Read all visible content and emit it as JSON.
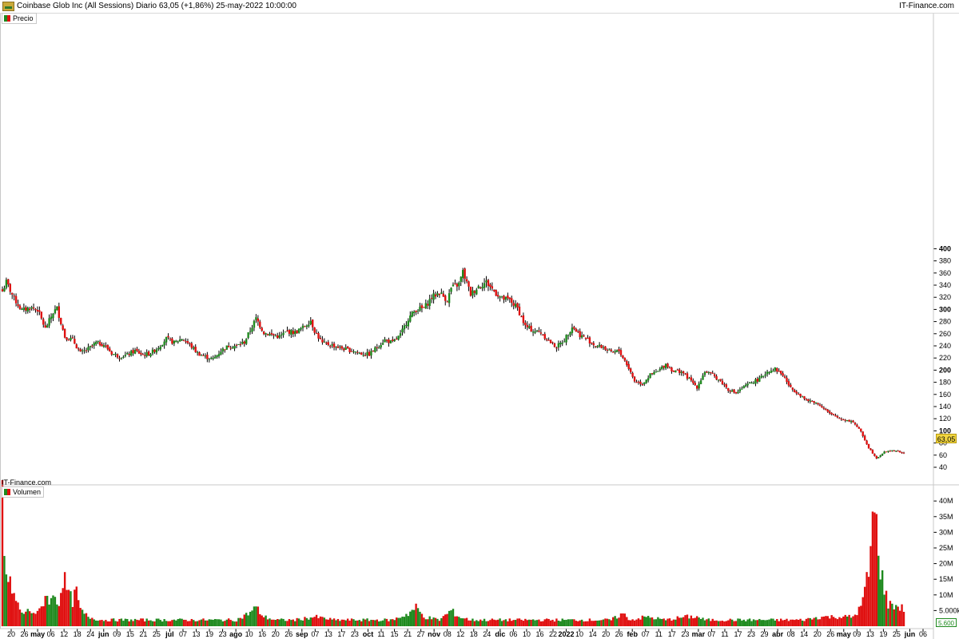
{
  "header": {
    "title": "Coinbase Glob Inc (All Sessions) Diario 63,05 (+1,86%) 25-may-2022 10:00:00",
    "brand": "IT-Finance.com"
  },
  "watermark": "IT-Finance.com",
  "price_pane": {
    "label": "Precio",
    "last_value_label": "63,05"
  },
  "volume_pane": {
    "label": "Volumen",
    "last_value_label": "5.600"
  },
  "colors": {
    "up": "#1e8a1e",
    "down": "#e01010",
    "badge": "#f2d640",
    "grid": "#e6e6e6"
  },
  "chart_data": [
    {
      "type": "candlestick",
      "title": "Precio",
      "ylim": [
        30,
        410
      ],
      "y_ticks": [
        "40",
        "60",
        "80",
        "100",
        "120",
        "140",
        "160",
        "180",
        "200",
        "220",
        "240",
        "260",
        "280",
        "300",
        "320",
        "340",
        "360",
        "380",
        "400"
      ],
      "bold_ticks": [
        "100",
        "200",
        "300",
        "400"
      ],
      "x_tick_labels": [
        "20",
        "26",
        "may",
        "06",
        "12",
        "18",
        "24",
        "jun",
        "09",
        "15",
        "21",
        "25",
        "jul",
        "07",
        "13",
        "19",
        "23",
        "ago",
        "10",
        "16",
        "20",
        "26",
        "sep",
        "07",
        "13",
        "17",
        "23",
        "oct",
        "11",
        "15",
        "21",
        "27",
        "nov",
        "08",
        "12",
        "18",
        "24",
        "dic",
        "06",
        "10",
        "16",
        "22",
        "2022",
        "10",
        "14",
        "20",
        "26",
        "feb",
        "07",
        "11",
        "17",
        "23",
        "mar",
        "07",
        "11",
        "17",
        "23",
        "29",
        "abr",
        "08",
        "14",
        "20",
        "26",
        "may",
        "09",
        "13",
        "19",
        "25",
        "jun",
        "06"
      ],
      "bold_x_labels": [
        "may",
        "jun",
        "jul",
        "ago",
        "sep",
        "oct",
        "nov",
        "dic",
        "2022",
        "feb",
        "mar",
        "abr"
      ],
      "anchors": [
        [
          0,
          330
        ],
        [
          2,
          345
        ],
        [
          6,
          318
        ],
        [
          10,
          298
        ],
        [
          14,
          303
        ],
        [
          18,
          300
        ],
        [
          22,
          268
        ],
        [
          26,
          295
        ],
        [
          28,
          302
        ],
        [
          32,
          255
        ],
        [
          36,
          250
        ],
        [
          40,
          228
        ],
        [
          44,
          235
        ],
        [
          48,
          245
        ],
        [
          52,
          242
        ],
        [
          56,
          228
        ],
        [
          60,
          222
        ],
        [
          64,
          225
        ],
        [
          68,
          232
        ],
        [
          72,
          225
        ],
        [
          76,
          228
        ],
        [
          80,
          238
        ],
        [
          84,
          252
        ],
        [
          88,
          245
        ],
        [
          92,
          252
        ],
        [
          96,
          242
        ],
        [
          100,
          228
        ],
        [
          104,
          222
        ],
        [
          108,
          218
        ],
        [
          112,
          232
        ],
        [
          116,
          240
        ],
        [
          120,
          240
        ],
        [
          124,
          246
        ],
        [
          128,
          272
        ],
        [
          130,
          285
        ],
        [
          134,
          262
        ],
        [
          138,
          258
        ],
        [
          142,
          255
        ],
        [
          146,
          264
        ],
        [
          150,
          262
        ],
        [
          154,
          270
        ],
        [
          158,
          282
        ],
        [
          160,
          265
        ],
        [
          164,
          244
        ],
        [
          168,
          242
        ],
        [
          172,
          238
        ],
        [
          176,
          234
        ],
        [
          180,
          232
        ],
        [
          184,
          227
        ],
        [
          188,
          226
        ],
        [
          192,
          238
        ],
        [
          196,
          250
        ],
        [
          200,
          245
        ],
        [
          204,
          258
        ],
        [
          208,
          285
        ],
        [
          212,
          300
        ],
        [
          216,
          302
        ],
        [
          220,
          320
        ],
        [
          224,
          328
        ],
        [
          228,
          315
        ],
        [
          230,
          335
        ],
        [
          234,
          342
        ],
        [
          236,
          362
        ],
        [
          240,
          325
        ],
        [
          244,
          338
        ],
        [
          248,
          345
        ],
        [
          252,
          330
        ],
        [
          256,
          318
        ],
        [
          260,
          315
        ],
        [
          264,
          302
        ],
        [
          268,
          272
        ],
        [
          272,
          265
        ],
        [
          276,
          262
        ],
        [
          280,
          248
        ],
        [
          284,
          238
        ],
        [
          288,
          250
        ],
        [
          292,
          272
        ],
        [
          296,
          258
        ],
        [
          300,
          250
        ],
        [
          304,
          240
        ],
        [
          308,
          238
        ],
        [
          312,
          228
        ],
        [
          316,
          232
        ],
        [
          320,
          210
        ],
        [
          324,
          182
        ],
        [
          328,
          178
        ],
        [
          332,
          192
        ],
        [
          336,
          198
        ],
        [
          340,
          210
        ],
        [
          344,
          198
        ],
        [
          348,
          198
        ],
        [
          352,
          185
        ],
        [
          356,
          172
        ],
        [
          360,
          198
        ],
        [
          364,
          192
        ],
        [
          368,
          182
        ],
        [
          372,
          168
        ],
        [
          376,
          162
        ],
        [
          380,
          172
        ],
        [
          384,
          180
        ],
        [
          388,
          185
        ],
        [
          392,
          198
        ],
        [
          396,
          202
        ],
        [
          400,
          192
        ],
        [
          404,
          170
        ],
        [
          408,
          162
        ],
        [
          412,
          150
        ],
        [
          416,
          148
        ],
        [
          420,
          140
        ],
        [
          424,
          128
        ],
        [
          428,
          122
        ],
        [
          432,
          118
        ],
        [
          436,
          115
        ],
        [
          440,
          98
        ],
        [
          444,
          72
        ],
        [
          448,
          55
        ],
        [
          452,
          65
        ],
        [
          456,
          68
        ],
        [
          460,
          65
        ],
        [
          462,
          63.05
        ]
      ],
      "last_close": 63.05
    },
    {
      "type": "bar",
      "title": "Volumen",
      "unit": "M",
      "ylim": [
        0,
        44
      ],
      "y_ticks": [
        "5.000k",
        "10M",
        "15M",
        "20M",
        "25M",
        "30M",
        "35M",
        "40M"
      ],
      "anchors": [
        [
          0,
          41
        ],
        [
          1,
          22
        ],
        [
          3,
          14
        ],
        [
          5,
          12
        ],
        [
          7,
          8
        ],
        [
          10,
          4
        ],
        [
          14,
          5
        ],
        [
          18,
          4
        ],
        [
          20,
          6
        ],
        [
          22,
          10
        ],
        [
          25,
          8
        ],
        [
          27,
          10
        ],
        [
          29,
          7
        ],
        [
          31,
          16
        ],
        [
          34,
          10
        ],
        [
          36,
          8
        ],
        [
          38,
          11
        ],
        [
          40,
          5
        ],
        [
          44,
          3
        ],
        [
          50,
          2
        ],
        [
          60,
          2
        ],
        [
          70,
          2
        ],
        [
          80,
          2
        ],
        [
          90,
          2
        ],
        [
          100,
          2
        ],
        [
          110,
          2
        ],
        [
          120,
          2
        ],
        [
          126,
          4
        ],
        [
          130,
          6
        ],
        [
          134,
          3
        ],
        [
          140,
          2
        ],
        [
          150,
          2
        ],
        [
          160,
          3
        ],
        [
          170,
          2
        ],
        [
          180,
          2
        ],
        [
          190,
          2
        ],
        [
          200,
          2
        ],
        [
          208,
          4
        ],
        [
          212,
          6
        ],
        [
          216,
          3
        ],
        [
          224,
          2
        ],
        [
          230,
          5
        ],
        [
          234,
          3
        ],
        [
          240,
          2
        ],
        [
          250,
          2
        ],
        [
          260,
          2
        ],
        [
          270,
          2
        ],
        [
          280,
          2
        ],
        [
          290,
          2
        ],
        [
          300,
          2
        ],
        [
          312,
          2
        ],
        [
          318,
          4
        ],
        [
          322,
          2
        ],
        [
          330,
          3
        ],
        [
          340,
          2
        ],
        [
          350,
          3
        ],
        [
          356,
          3
        ],
        [
          360,
          2
        ],
        [
          370,
          2
        ],
        [
          380,
          2
        ],
        [
          390,
          2
        ],
        [
          400,
          2
        ],
        [
          410,
          2
        ],
        [
          420,
          3
        ],
        [
          430,
          3
        ],
        [
          436,
          3
        ],
        [
          440,
          6
        ],
        [
          444,
          17
        ],
        [
          446,
          34
        ],
        [
          448,
          32
        ],
        [
          450,
          19
        ],
        [
          452,
          12
        ],
        [
          454,
          7
        ],
        [
          456,
          7
        ],
        [
          460,
          6
        ],
        [
          462,
          5.6
        ]
      ],
      "last_value": 5.6
    }
  ]
}
